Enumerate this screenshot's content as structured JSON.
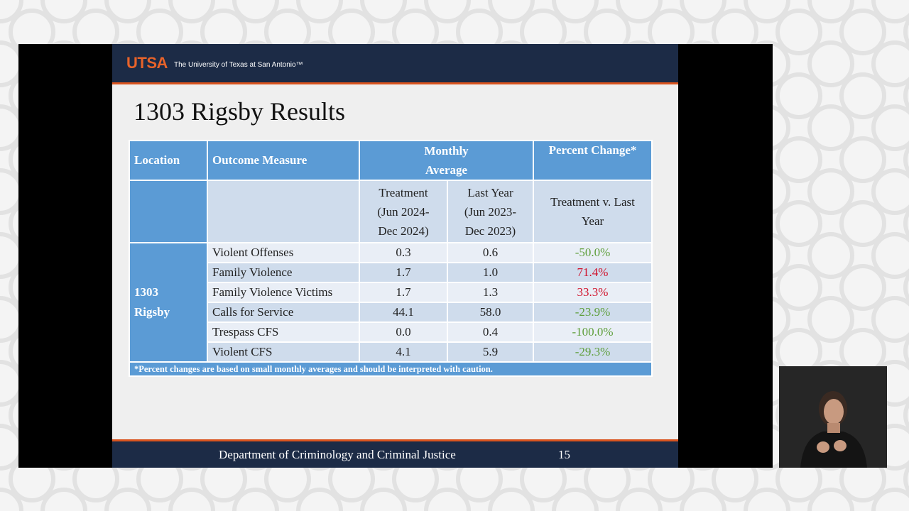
{
  "header": {
    "logo": "UTSA",
    "university": "The University of Texas at San Antonio™"
  },
  "slide_title": "1303 Rigsby Results",
  "table": {
    "headers": {
      "location": "Location",
      "outcome": "Outcome Measure",
      "monthly_average": "Monthly Average",
      "percent_change": "Percent Change*"
    },
    "subheaders": {
      "treatment": "Treatment (Jun 2024- Dec 2024)",
      "last_year": "Last Year (Jun 2023- Dec 2023)",
      "comparison": "Treatment v. Last Year"
    },
    "location_label": "1303 Rigsby",
    "rows": [
      {
        "measure": "Violent Offenses",
        "treatment": "0.3",
        "last_year": "0.6",
        "change": "-50.0%",
        "direction": "decrease"
      },
      {
        "measure": "Family Violence",
        "treatment": "1.7",
        "last_year": "1.0",
        "change": "71.4%",
        "direction": "increase"
      },
      {
        "measure": "Family Violence Victims",
        "treatment": "1.7",
        "last_year": "1.3",
        "change": "33.3%",
        "direction": "increase"
      },
      {
        "measure": "Calls for Service",
        "treatment": "44.1",
        "last_year": "58.0",
        "change": "-23.9%",
        "direction": "decrease"
      },
      {
        "measure": "Trespass CFS",
        "treatment": "0.0",
        "last_year": "0.4",
        "change": "-100.0%",
        "direction": "decrease"
      },
      {
        "measure": "Violent CFS",
        "treatment": "4.1",
        "last_year": "5.9",
        "change": "-29.3%",
        "direction": "decrease"
      }
    ],
    "footnote": "*Percent changes are based on small monthly averages and should be interpreted with caution."
  },
  "footer": {
    "department": "Department of Criminology and Criminal Justice",
    "page_number": "15"
  },
  "colors": {
    "header_bar": "#1c2b46",
    "accent_orange": "#d9541e",
    "table_header": "#5b9bd5",
    "increase": "#d0112b",
    "decrease": "#5e9e3a"
  }
}
